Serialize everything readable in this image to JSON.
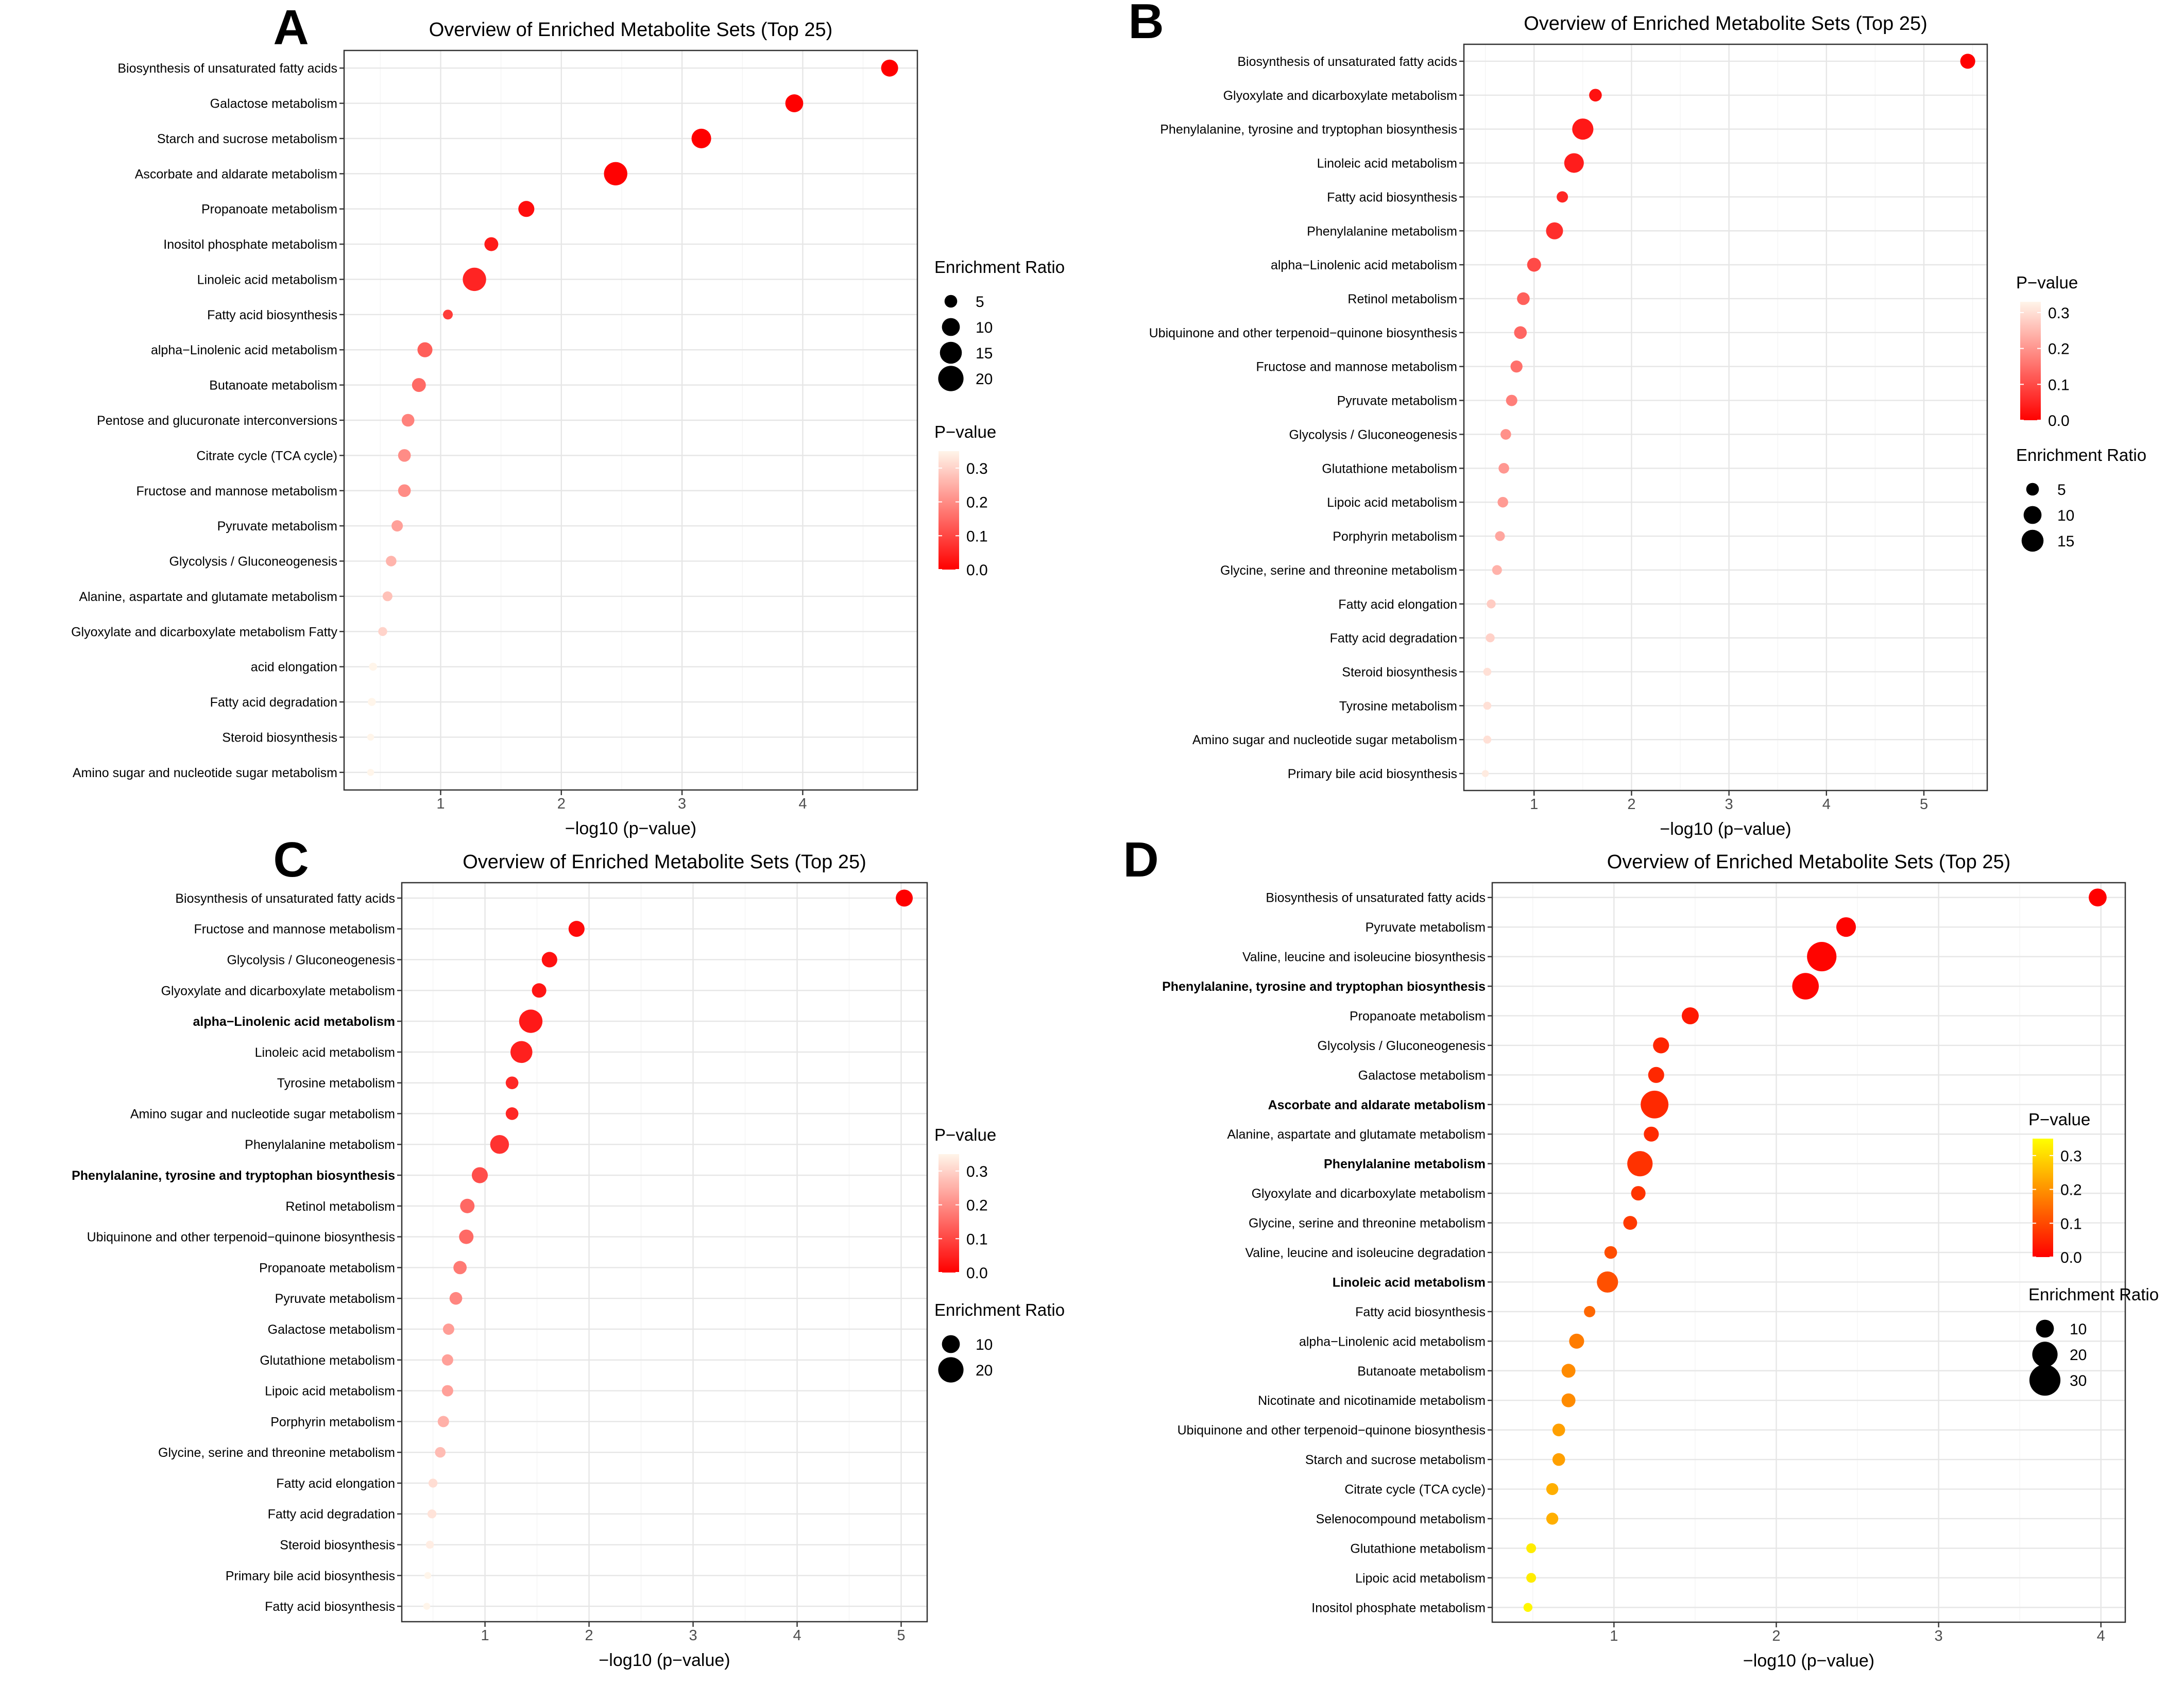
{
  "chart_data": [
    {
      "panel_letter": "A",
      "type": "scatter",
      "title": "Overview of Enriched Metabolite Sets (Top 25)",
      "xlabel": "−log10 (p−value)",
      "ylabel": "",
      "xlim": [
        0.2,
        4.95
      ],
      "xticks": [
        1,
        2,
        3,
        4
      ],
      "grid": true,
      "legend_order": [
        "size",
        "color"
      ],
      "size_legend": {
        "title": "Enrichment Ratio",
        "values": [
          5,
          10,
          15,
          20
        ]
      },
      "color_legend": {
        "title": "P−value",
        "ticks": [
          0.3,
          0.2,
          0.1,
          0.0
        ],
        "tick_labels": [
          "0.3",
          "0.2",
          "0.1",
          "0.0"
        ],
        "max": 0.35,
        "low_color": "#ff0000",
        "high_color": "#fff5ea"
      },
      "points": [
        {
          "label": "Biosynthesis of unsaturated fatty acids",
          "x": 4.72,
          "ratio": 9,
          "p": 2e-05,
          "bold": false
        },
        {
          "label": "Galactose metabolism",
          "x": 3.93,
          "ratio": 10,
          "p": 0.0001,
          "bold": false
        },
        {
          "label": "Starch and sucrose metabolism",
          "x": 3.16,
          "ratio": 12,
          "p": 0.0007,
          "bold": false
        },
        {
          "label": "Ascorbate and aldarate metabolism",
          "x": 2.45,
          "ratio": 17,
          "p": 0.0035,
          "bold": false
        },
        {
          "label": "Propanoate metabolism",
          "x": 1.71,
          "ratio": 8,
          "p": 0.019,
          "bold": false
        },
        {
          "label": "Inositol phosphate metabolism",
          "x": 1.42,
          "ratio": 6,
          "p": 0.038,
          "bold": false
        },
        {
          "label": "Linoleic acid metabolism",
          "x": 1.28,
          "ratio": 17,
          "p": 0.052,
          "bold": false
        },
        {
          "label": "Fatty acid biosynthesis",
          "x": 1.06,
          "ratio": 3,
          "p": 0.087,
          "bold": false
        },
        {
          "label": "alpha−Linolenic acid metabolism",
          "x": 0.87,
          "ratio": 7,
          "p": 0.135,
          "bold": false
        },
        {
          "label": "Butanoate metabolism",
          "x": 0.82,
          "ratio": 6,
          "p": 0.151,
          "bold": false
        },
        {
          "label": "Pentose and glucuronate interconversions",
          "x": 0.73,
          "ratio": 5,
          "p": 0.186,
          "bold": false
        },
        {
          "label": "Citrate cycle (TCA cycle)",
          "x": 0.7,
          "ratio": 5,
          "p": 0.2,
          "bold": false
        },
        {
          "label": "Fructose and mannose metabolism",
          "x": 0.7,
          "ratio": 5,
          "p": 0.2,
          "bold": false
        },
        {
          "label": "Pyruvate metabolism",
          "x": 0.64,
          "ratio": 4,
          "p": 0.229,
          "bold": false
        },
        {
          "label": "Glycolysis / Gluconeogenesis",
          "x": 0.59,
          "ratio": 3.5,
          "p": 0.257,
          "bold": false
        },
        {
          "label": "Alanine, aspartate and glutamate metabolism",
          "x": 0.56,
          "ratio": 3,
          "p": 0.275,
          "bold": false
        },
        {
          "label": "Glyoxylate and dicarboxylate metabolism Fatty",
          "x": 0.52,
          "ratio": 2.5,
          "p": 0.302,
          "bold": false
        },
        {
          "label": "acid elongation",
          "x": 0.44,
          "ratio": 2,
          "p": 0.363,
          "bold": false
        },
        {
          "label": "Fatty acid degradation",
          "x": 0.43,
          "ratio": 2,
          "p": 0.371,
          "bold": false
        },
        {
          "label": "Steroid biosynthesis",
          "x": 0.42,
          "ratio": 1.5,
          "p": 0.38,
          "bold": false
        },
        {
          "label": "Amino sugar and nucleotide sugar metabolism",
          "x": 0.42,
          "ratio": 1.5,
          "p": 0.38,
          "bold": false
        }
      ]
    },
    {
      "panel_letter": "B",
      "type": "scatter",
      "title": "Overview of Enriched Metabolite Sets (Top 25)",
      "xlabel": "−log10 (p−value)",
      "ylabel": "",
      "xlim": [
        0.28,
        5.65
      ],
      "xticks": [
        1,
        2,
        3,
        4,
        5
      ],
      "grid": true,
      "legend_order": [
        "color",
        "size"
      ],
      "size_legend": {
        "title": "Enrichment Ratio",
        "values": [
          5,
          10,
          15
        ]
      },
      "color_legend": {
        "title": "P−value",
        "ticks": [
          0.3,
          0.2,
          0.1,
          0.0
        ],
        "tick_labels": [
          "0.3",
          "0.2",
          "0.1",
          "0.0"
        ],
        "max": 0.33,
        "low_color": "#ff0000",
        "high_color": "#fff5ea"
      },
      "points": [
        {
          "label": "Biosynthesis of unsaturated fatty acids",
          "x": 5.45,
          "ratio": 7,
          "p": 4e-06,
          "bold": false
        },
        {
          "label": "Glyoxylate and dicarboxylate metabolism",
          "x": 1.63,
          "ratio": 5,
          "p": 0.023,
          "bold": false
        },
        {
          "label": "Phenylalanine, tyrosine and tryptophan biosynthesis",
          "x": 1.5,
          "ratio": 14,
          "p": 0.032,
          "bold": false
        },
        {
          "label": "Linoleic acid metabolism",
          "x": 1.41,
          "ratio": 12,
          "p": 0.039,
          "bold": false
        },
        {
          "label": "Fatty acid biosynthesis",
          "x": 1.29,
          "ratio": 4,
          "p": 0.051,
          "bold": false
        },
        {
          "label": "Phenylalanine metabolism",
          "x": 1.21,
          "ratio": 9,
          "p": 0.062,
          "bold": false
        },
        {
          "label": "alpha−Linolenic acid metabolism",
          "x": 1.0,
          "ratio": 6,
          "p": 0.1,
          "bold": false
        },
        {
          "label": "Retinol metabolism",
          "x": 0.89,
          "ratio": 5,
          "p": 0.129,
          "bold": false
        },
        {
          "label": "Ubiquinone and other terpenoid−quinone biosynthesis",
          "x": 0.86,
          "ratio": 5,
          "p": 0.138,
          "bold": false
        },
        {
          "label": "Fructose and mannose metabolism",
          "x": 0.82,
          "ratio": 4.5,
          "p": 0.151,
          "bold": false
        },
        {
          "label": "Pyruvate metabolism",
          "x": 0.77,
          "ratio": 4,
          "p": 0.17,
          "bold": false
        },
        {
          "label": "Glycolysis / Gluconeogenesis",
          "x": 0.71,
          "ratio": 3.5,
          "p": 0.195,
          "bold": false
        },
        {
          "label": "Glutathione metabolism",
          "x": 0.69,
          "ratio": 3.5,
          "p": 0.204,
          "bold": false
        },
        {
          "label": "Lipoic acid metabolism",
          "x": 0.68,
          "ratio": 3.5,
          "p": 0.209,
          "bold": false
        },
        {
          "label": "Porphyrin metabolism",
          "x": 0.65,
          "ratio": 3,
          "p": 0.224,
          "bold": false
        },
        {
          "label": "Glycine, serine and threonine metabolism",
          "x": 0.62,
          "ratio": 3,
          "p": 0.24,
          "bold": false
        },
        {
          "label": "Fatty acid elongation",
          "x": 0.56,
          "ratio": 2.5,
          "p": 0.275,
          "bold": false
        },
        {
          "label": "Fatty acid degradation",
          "x": 0.55,
          "ratio": 2.5,
          "p": 0.282,
          "bold": false
        },
        {
          "label": "Steroid biosynthesis",
          "x": 0.52,
          "ratio": 2,
          "p": 0.302,
          "bold": false
        },
        {
          "label": "Tyrosine metabolism",
          "x": 0.52,
          "ratio": 2,
          "p": 0.302,
          "bold": false
        },
        {
          "label": "Amino sugar and nucleotide sugar metabolism",
          "x": 0.52,
          "ratio": 2,
          "p": 0.302,
          "bold": false
        },
        {
          "label": "Primary bile acid biosynthesis",
          "x": 0.5,
          "ratio": 1.5,
          "p": 0.316,
          "bold": false
        }
      ]
    },
    {
      "panel_letter": "C",
      "type": "scatter",
      "title": "Overview of Enriched Metabolite Sets (Top 25)",
      "xlabel": "−log10 (p−value)",
      "ylabel": "",
      "xlim": [
        0.2,
        5.25
      ],
      "xticks": [
        1,
        2,
        3,
        4,
        5
      ],
      "grid": true,
      "legend_order": [
        "color",
        "size"
      ],
      "size_legend": {
        "title": "Enrichment Ratio",
        "values": [
          10,
          20
        ]
      },
      "color_legend": {
        "title": "P−value",
        "ticks": [
          0.3,
          0.2,
          0.1,
          0.0
        ],
        "tick_labels": [
          "0.3",
          "0.2",
          "0.1",
          "0.0"
        ],
        "max": 0.35,
        "low_color": "#ff0000",
        "high_color": "#fff5ea"
      },
      "points": [
        {
          "label": "Biosynthesis of unsaturated fatty acids",
          "x": 5.03,
          "ratio": 9,
          "p": 1e-05,
          "bold": false
        },
        {
          "label": "Fructose and mannose metabolism",
          "x": 1.88,
          "ratio": 8,
          "p": 0.013,
          "bold": false
        },
        {
          "label": "Glycolysis / Gluconeogenesis",
          "x": 1.62,
          "ratio": 7.5,
          "p": 0.024,
          "bold": false
        },
        {
          "label": "Glyoxylate and dicarboxylate metabolism",
          "x": 1.52,
          "ratio": 6.5,
          "p": 0.03,
          "bold": false
        },
        {
          "label": "alpha−Linolenic acid metabolism",
          "x": 1.44,
          "ratio": 17,
          "p": 0.036,
          "bold": true
        },
        {
          "label": "Linoleic acid metabolism",
          "x": 1.35,
          "ratio": 15,
          "p": 0.045,
          "bold": false
        },
        {
          "label": "Tyrosine metabolism",
          "x": 1.26,
          "ratio": 5,
          "p": 0.055,
          "bold": false
        },
        {
          "label": "Amino sugar and nucleotide sugar metabolism",
          "x": 1.26,
          "ratio": 5,
          "p": 0.055,
          "bold": false
        },
        {
          "label": "Phenylalanine metabolism",
          "x": 1.14,
          "ratio": 11,
          "p": 0.072,
          "bold": false
        },
        {
          "label": "Phenylalanine, tyrosine and tryptophan biosynthesis",
          "x": 0.95,
          "ratio": 8,
          "p": 0.112,
          "bold": true
        },
        {
          "label": "Retinol metabolism",
          "x": 0.83,
          "ratio": 6.5,
          "p": 0.148,
          "bold": false
        },
        {
          "label": "Ubiquinone and other terpenoid−quinone biosynthesis",
          "x": 0.82,
          "ratio": 6.5,
          "p": 0.151,
          "bold": false
        },
        {
          "label": "Propanoate metabolism",
          "x": 0.76,
          "ratio": 5.5,
          "p": 0.174,
          "bold": false
        },
        {
          "label": "Pyruvate metabolism",
          "x": 0.72,
          "ratio": 5,
          "p": 0.191,
          "bold": false
        },
        {
          "label": "Galactose metabolism",
          "x": 0.65,
          "ratio": 4,
          "p": 0.224,
          "bold": false
        },
        {
          "label": "Glutathione metabolism",
          "x": 0.64,
          "ratio": 4,
          "p": 0.229,
          "bold": false
        },
        {
          "label": "Lipoic acid metabolism",
          "x": 0.64,
          "ratio": 4,
          "p": 0.229,
          "bold": false
        },
        {
          "label": "Porphyrin metabolism",
          "x": 0.6,
          "ratio": 4,
          "p": 0.251,
          "bold": false
        },
        {
          "label": "Glycine, serine and threonine metabolism",
          "x": 0.57,
          "ratio": 3.5,
          "p": 0.269,
          "bold": false
        },
        {
          "label": "Fatty acid elongation",
          "x": 0.5,
          "ratio": 2.5,
          "p": 0.316,
          "bold": false
        },
        {
          "label": "Fatty acid degradation",
          "x": 0.49,
          "ratio": 2.5,
          "p": 0.324,
          "bold": false
        },
        {
          "label": "Steroid biosynthesis",
          "x": 0.47,
          "ratio": 2,
          "p": 0.339,
          "bold": false
        },
        {
          "label": "Primary bile acid biosynthesis",
          "x": 0.45,
          "ratio": 1.5,
          "p": 0.355,
          "bold": false
        },
        {
          "label": "Fatty acid biosynthesis",
          "x": 0.44,
          "ratio": 1.5,
          "p": 0.363,
          "bold": false
        }
      ]
    },
    {
      "panel_letter": "D",
      "type": "scatter",
      "title": "Overview of Enriched Metabolite Sets (Top 25)",
      "xlabel": "−log10 (p−value)",
      "ylabel": "",
      "xlim": [
        0.25,
        4.15
      ],
      "xticks": [
        1,
        2,
        3,
        4
      ],
      "grid": true,
      "legend_order": [
        "color",
        "size"
      ],
      "size_legend": {
        "title": "Enrichment Ratio",
        "values": [
          10,
          20,
          30
        ]
      },
      "color_legend": {
        "title": "P−value",
        "ticks": [
          0.3,
          0.2,
          0.1,
          0.0
        ],
        "tick_labels": [
          "0.3",
          "0.2",
          "0.1",
          "0.0"
        ],
        "max": 0.35,
        "low_color": "#ff0000",
        "high_color": "#ffff00"
      },
      "points": [
        {
          "label": "Biosynthesis of unsaturated fatty acids",
          "x": 3.98,
          "ratio": 10,
          "p": 0.0001,
          "bold": false
        },
        {
          "label": "Pyruvate metabolism",
          "x": 2.43,
          "ratio": 12,
          "p": 0.0037,
          "bold": false
        },
        {
          "label": "Valine, leucine and isoleucine biosynthesis",
          "x": 2.28,
          "ratio": 27,
          "p": 0.0052,
          "bold": false
        },
        {
          "label": "Phenylalanine, tyrosine and tryptophan biosynthesis",
          "x": 2.18,
          "ratio": 22,
          "p": 0.0066,
          "bold": true
        },
        {
          "label": "Propanoate metabolism",
          "x": 1.47,
          "ratio": 9,
          "p": 0.034,
          "bold": false
        },
        {
          "label": "Glycolysis / Gluconeogenesis",
          "x": 1.29,
          "ratio": 8,
          "p": 0.051,
          "bold": false
        },
        {
          "label": "Galactose metabolism",
          "x": 1.26,
          "ratio": 8,
          "p": 0.055,
          "bold": false
        },
        {
          "label": "Ascorbate and aldarate metabolism",
          "x": 1.25,
          "ratio": 24,
          "p": 0.056,
          "bold": true
        },
        {
          "label": "Alanine, aspartate and glutamate metabolism",
          "x": 1.23,
          "ratio": 7,
          "p": 0.059,
          "bold": false
        },
        {
          "label": "Phenylalanine metabolism",
          "x": 1.16,
          "ratio": 20,
          "p": 0.069,
          "bold": true
        },
        {
          "label": "Glyoxylate and dicarboxylate metabolism",
          "x": 1.15,
          "ratio": 6.5,
          "p": 0.071,
          "bold": false
        },
        {
          "label": "Glycine, serine and threonine metabolism",
          "x": 1.1,
          "ratio": 6,
          "p": 0.079,
          "bold": false
        },
        {
          "label": "Valine, leucine and isoleucine degradation",
          "x": 0.98,
          "ratio": 5,
          "p": 0.105,
          "bold": false
        },
        {
          "label": "Linoleic acid metabolism",
          "x": 0.96,
          "ratio": 14,
          "p": 0.11,
          "bold": true
        },
        {
          "label": "Fatty acid biosynthesis",
          "x": 0.85,
          "ratio": 4,
          "p": 0.141,
          "bold": false
        },
        {
          "label": "alpha−Linolenic acid metabolism",
          "x": 0.77,
          "ratio": 7,
          "p": 0.17,
          "bold": false
        },
        {
          "label": "Butanoate metabolism",
          "x": 0.72,
          "ratio": 6,
          "p": 0.191,
          "bold": false
        },
        {
          "label": "Nicotinate and nicotinamide metabolism",
          "x": 0.72,
          "ratio": 6,
          "p": 0.191,
          "bold": false
        },
        {
          "label": "Ubiquinone and other terpenoid−quinone biosynthesis",
          "x": 0.66,
          "ratio": 5,
          "p": 0.219,
          "bold": false
        },
        {
          "label": "Starch and sucrose metabolism",
          "x": 0.66,
          "ratio": 5,
          "p": 0.219,
          "bold": false
        },
        {
          "label": "Citrate cycle (TCA cycle)",
          "x": 0.62,
          "ratio": 4.5,
          "p": 0.24,
          "bold": false
        },
        {
          "label": "Selenocompound metabolism",
          "x": 0.62,
          "ratio": 4.5,
          "p": 0.24,
          "bold": false
        },
        {
          "label": "Glutathione metabolism",
          "x": 0.49,
          "ratio": 3,
          "p": 0.324,
          "bold": false
        },
        {
          "label": "Lipoic acid metabolism",
          "x": 0.49,
          "ratio": 3,
          "p": 0.324,
          "bold": false
        },
        {
          "label": "Inositol phosphate metabolism",
          "x": 0.47,
          "ratio": 2.5,
          "p": 0.339,
          "bold": false
        }
      ]
    }
  ]
}
